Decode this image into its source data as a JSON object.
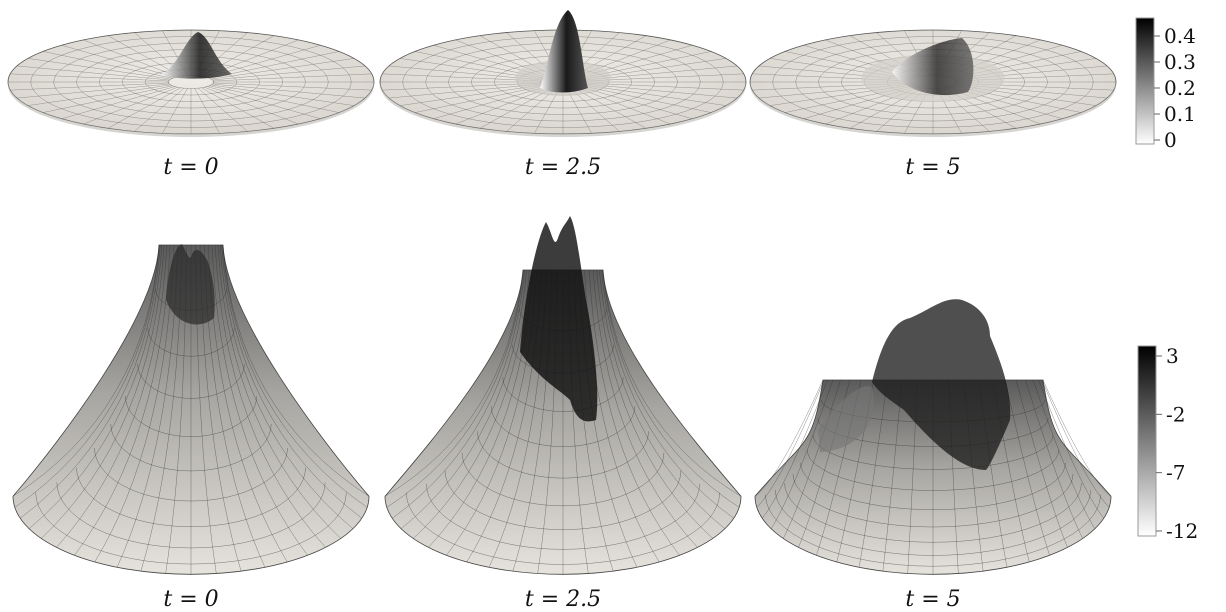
{
  "rows": [
    {
      "id": "row-1",
      "panels": [
        {
          "label": "t = 0"
        },
        {
          "label": "t = 2.5"
        },
        {
          "label": "t = 5"
        }
      ],
      "colorbar": {
        "ticks": [
          "0.4",
          "0.3",
          "0.2",
          "0.1",
          "0"
        ],
        "range": [
          0,
          0.45
        ]
      }
    },
    {
      "id": "row-2",
      "panels": [
        {
          "label": "t = 0"
        },
        {
          "label": "t = 2.5"
        },
        {
          "label": "t = 5"
        }
      ],
      "colorbar": {
        "ticks": [
          "3",
          "-2",
          "-7",
          "-12"
        ],
        "range": [
          -12,
          3
        ]
      }
    }
  ],
  "colors": {
    "surface": "#e8e5df",
    "dark": "#0d0d0d",
    "grid": "#3a3a3a"
  }
}
